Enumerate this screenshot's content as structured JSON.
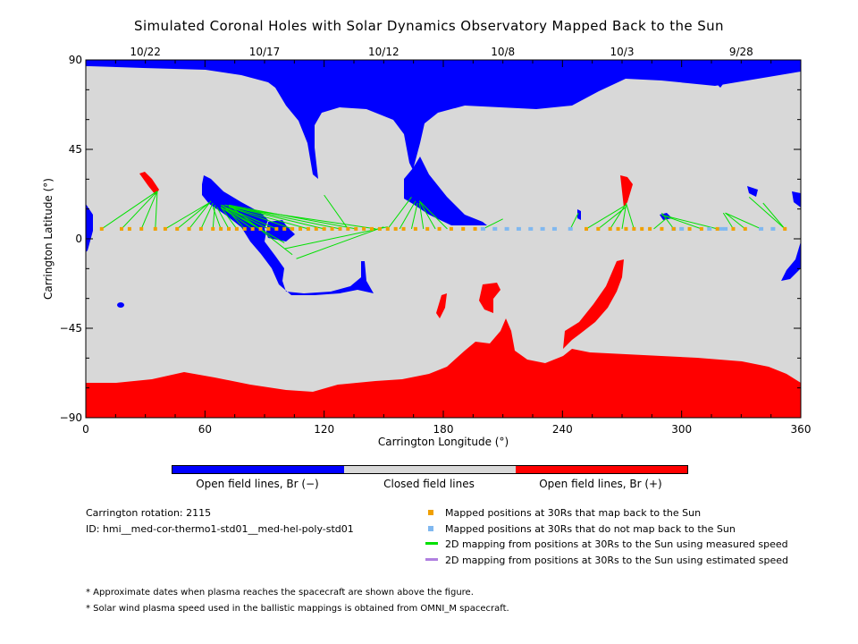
{
  "title": "Simulated Coronal Holes with Solar Dynamics Observatory Mapped Back to the Sun",
  "chart_data": {
    "type": "map",
    "xlabel": "Carrington Longitude (°)",
    "ylabel": "Carrington Latitude (°)",
    "xlim": [
      0,
      360
    ],
    "ylim": [
      -90,
      90
    ],
    "x_ticks": [
      "0",
      "60",
      "120",
      "180",
      "240",
      "300",
      "360"
    ],
    "y_ticks": [
      "90",
      "45",
      "0",
      "−45",
      "−90"
    ],
    "top_dates": [
      {
        "label": "10/22",
        "lon": 30
      },
      {
        "label": "10/17",
        "lon": 90
      },
      {
        "label": "10/12",
        "lon": 150
      },
      {
        "label": "10/8",
        "lon": 210
      },
      {
        "label": "10/3",
        "lon": 270
      },
      {
        "label": "9/28",
        "lon": 330
      }
    ],
    "colors": {
      "neg": "#0000ff",
      "closed": "#d8d8d8",
      "pos": "#ff0000",
      "mapped": "#f0a000",
      "unmapped": "#80b8f0",
      "measured": "#00e000",
      "estimated": "#b080e0"
    },
    "mapped_positions_lon": [
      8,
      18,
      22,
      28,
      35,
      40,
      46,
      52,
      58,
      64,
      68,
      72,
      76,
      80,
      84,
      88,
      92,
      96,
      100,
      104,
      108,
      112,
      116,
      120,
      124,
      128,
      132,
      136,
      140,
      144,
      148,
      152,
      156,
      160,
      166,
      172,
      178,
      184,
      190,
      196,
      252,
      258,
      264,
      268,
      272,
      276,
      280,
      284,
      290,
      296,
      304,
      310,
      318,
      326,
      332,
      352
    ],
    "unmapped_positions_lon": [
      200,
      206,
      212,
      218,
      224,
      230,
      236,
      244,
      296,
      300,
      314,
      320,
      322,
      340,
      346
    ],
    "mapped_lat": 5,
    "mapping_lines": [
      [
        8,
        5,
        36,
        24
      ],
      [
        18,
        5,
        36,
        24
      ],
      [
        28,
        5,
        36,
        24
      ],
      [
        35,
        5,
        36,
        24
      ],
      [
        40,
        5,
        62,
        18
      ],
      [
        46,
        5,
        62,
        18
      ],
      [
        52,
        5,
        63,
        19
      ],
      [
        58,
        5,
        64,
        18
      ],
      [
        64,
        5,
        65,
        17
      ],
      [
        68,
        5,
        64,
        16
      ],
      [
        72,
        5,
        66,
        16
      ],
      [
        76,
        5,
        68,
        16
      ],
      [
        80,
        5,
        69,
        17
      ],
      [
        84,
        5,
        68,
        16
      ],
      [
        88,
        5,
        68,
        17
      ],
      [
        92,
        5,
        70,
        16
      ],
      [
        96,
        5,
        70,
        16
      ],
      [
        104,
        5,
        72,
        16
      ],
      [
        112,
        5,
        72,
        16
      ],
      [
        120,
        5,
        70,
        17
      ],
      [
        128,
        5,
        70,
        17
      ],
      [
        136,
        5,
        72,
        17
      ],
      [
        146,
        5,
        72,
        16
      ],
      [
        100,
        -2,
        68,
        16
      ],
      [
        104,
        -8,
        72,
        17
      ],
      [
        106,
        -10,
        150,
        6
      ],
      [
        100,
        -5,
        152,
        6
      ],
      [
        132,
        5,
        120,
        22
      ],
      [
        152,
        5,
        164,
        21
      ],
      [
        158,
        5,
        166,
        19
      ],
      [
        164,
        5,
        167,
        18
      ],
      [
        170,
        5,
        168,
        18
      ],
      [
        176,
        5,
        168,
        19
      ],
      [
        182,
        5,
        168,
        19
      ],
      [
        200,
        5,
        210,
        10
      ],
      [
        244,
        5,
        248,
        13
      ],
      [
        252,
        5,
        272,
        17
      ],
      [
        258,
        5,
        272,
        16
      ],
      [
        264,
        5,
        271,
        16
      ],
      [
        270,
        5,
        272,
        17
      ],
      [
        276,
        5,
        272,
        18
      ],
      [
        286,
        5,
        292,
        10
      ],
      [
        296,
        5,
        290,
        13
      ],
      [
        310,
        5,
        290,
        12
      ],
      [
        318,
        5,
        290,
        12
      ],
      [
        326,
        5,
        321,
        13
      ],
      [
        332,
        5,
        322,
        13
      ],
      [
        340,
        5,
        322,
        13
      ],
      [
        352,
        5,
        334,
        21
      ],
      [
        352,
        5,
        341,
        18
      ]
    ]
  },
  "colorbar": {
    "neg_label": "Open field lines, Br (−)",
    "closed_label": "Closed field lines",
    "pos_label": "Open field lines, Br (+)"
  },
  "info": {
    "rotation": "Carrington rotation: 2115",
    "id": "ID: hmi__med-cor-thermo1-std01__med-hel-poly-std01"
  },
  "legend": {
    "mapped": "Mapped positions at 30Rs that map back to the Sun",
    "unmapped": "Mapped positions at 30Rs that do not map back to the Sun",
    "measured": "2D mapping from positions at 30Rs to the Sun using measured speed",
    "estimated": "2D mapping from positions at 30Rs to the Sun using estimated speed"
  },
  "notes": {
    "n1": "* Approximate dates when plasma reaches the spacecraft are shown above the figure.",
    "n2": "* Solar wind plasma speed used in the ballistic mappings is obtained from OMNI_M spacecraft."
  }
}
